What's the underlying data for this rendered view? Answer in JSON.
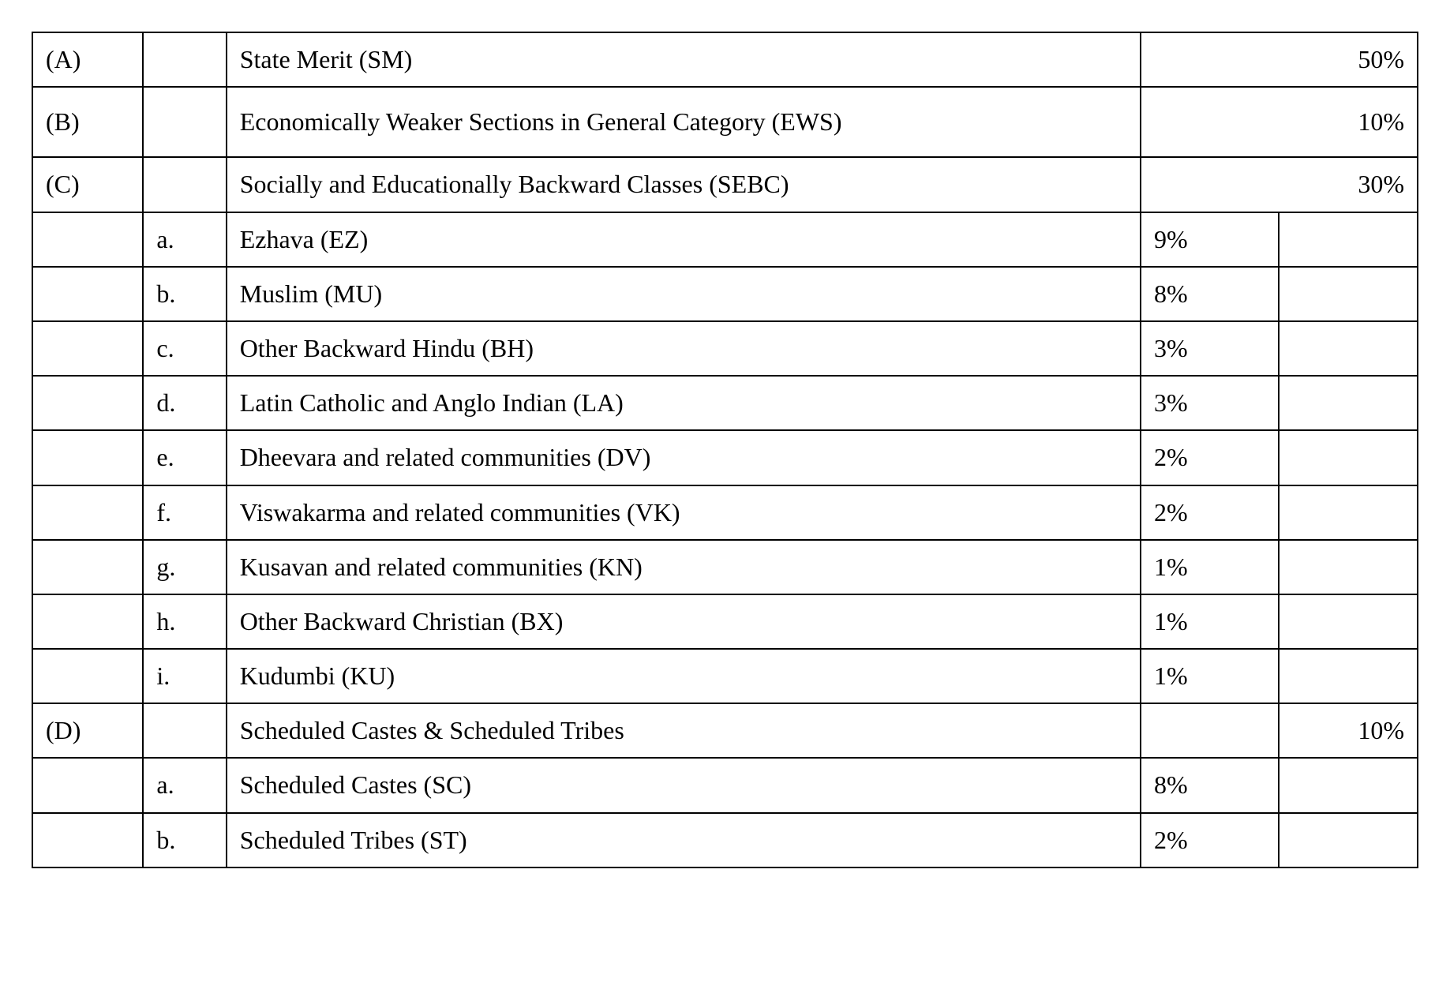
{
  "table": {
    "font_family": "Times New Roman",
    "font_size_pt": 24,
    "border_color": "#000000",
    "background_color": "#ffffff",
    "text_color": "#000000",
    "column_widths_pct": [
      8,
      6,
      66,
      10,
      10
    ],
    "rows": [
      {
        "letter": "(A)",
        "sub": "",
        "desc": "State Merit (SM)",
        "pct1": "",
        "pct2": "50%",
        "span_last": true,
        "justify": false
      },
      {
        "letter": "(B)",
        "sub": "",
        "desc": "Economically Weaker Sections in  General Category (EWS)",
        "pct1": "",
        "pct2": "10%",
        "span_last": true,
        "justify": true,
        "tall": true
      },
      {
        "letter": "(C)",
        "sub": "",
        "desc": "Socially and Educationally Backward Classes (SEBC)",
        "pct1": "",
        "pct2": "30%",
        "span_last": true,
        "justify": false
      },
      {
        "letter": "",
        "sub": "a.",
        "desc": "Ezhava (EZ)",
        "pct1": "9%",
        "pct2": "",
        "span_last": false,
        "justify": false
      },
      {
        "letter": "",
        "sub": "b.",
        "desc": "Muslim (MU)",
        "pct1": "8%",
        "pct2": "",
        "span_last": false,
        "justify": false
      },
      {
        "letter": "",
        "sub": "c.",
        "desc": "Other Backward Hindu (BH)",
        "pct1": "3%",
        "pct2": "",
        "span_last": false,
        "justify": false
      },
      {
        "letter": "",
        "sub": "d.",
        "desc": "Latin Catholic and Anglo Indian (LA)",
        "pct1": "3%",
        "pct2": "",
        "span_last": false,
        "justify": false
      },
      {
        "letter": "",
        "sub": "e.",
        "desc": "Dheevara and related communities (DV)",
        "pct1": "2%",
        "pct2": "",
        "span_last": false,
        "justify": false
      },
      {
        "letter": "",
        "sub": "f.",
        "desc": "Viswakarma and related communities (VK)",
        "pct1": "2%",
        "pct2": "",
        "span_last": false,
        "justify": false
      },
      {
        "letter": "",
        "sub": "g.",
        "desc": "Kusavan and related communities (KN)",
        "pct1": "1%",
        "pct2": "",
        "span_last": false,
        "justify": false
      },
      {
        "letter": "",
        "sub": "h.",
        "desc": "Other Backward Christian (BX)",
        "pct1": "1%",
        "pct2": "",
        "span_last": false,
        "justify": false
      },
      {
        "letter": "",
        "sub": "i.",
        "desc": "Kudumbi (KU)",
        "pct1": "1%",
        "pct2": "",
        "span_last": false,
        "justify": false
      },
      {
        "letter": "(D)",
        "sub": "",
        "desc": "Scheduled Castes & Scheduled Tribes",
        "pct1": "",
        "pct2": "10%",
        "span_last": false,
        "justify": false
      },
      {
        "letter": "",
        "sub": "a.",
        "desc": "Scheduled Castes (SC)",
        "pct1": "8%",
        "pct2": "",
        "span_last": false,
        "justify": false
      },
      {
        "letter": "",
        "sub": "b.",
        "desc": "Scheduled Tribes (ST)",
        "pct1": "2%",
        "pct2": "",
        "span_last": false,
        "justify": false
      }
    ]
  }
}
